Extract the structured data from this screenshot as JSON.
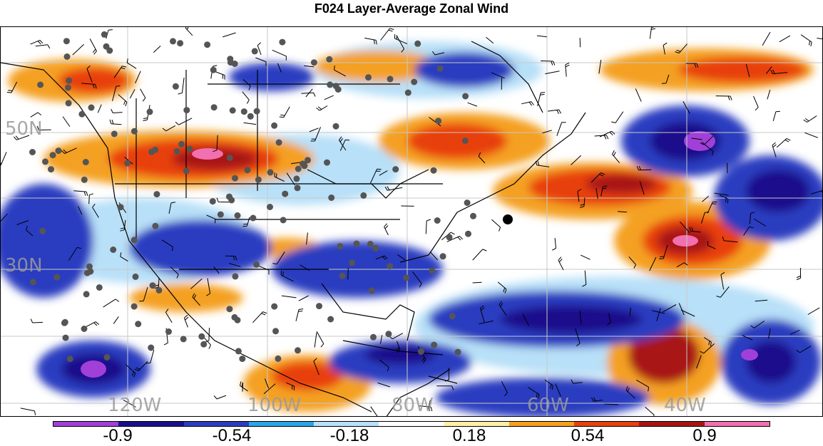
{
  "title": "F024 Layer-Average Zonal Wind",
  "map": {
    "lon_labels": [
      "120W",
      "100W",
      "80W",
      "60W",
      "40W"
    ],
    "lat_labels": [
      "50N",
      "30N"
    ]
  },
  "colorbar": {
    "colors": [
      "#a040d8",
      "#1a0f8c",
      "#2a3ec0",
      "#2aa6e8",
      "#b8e0f8",
      "#ffffff",
      "#fff0a8",
      "#f4a020",
      "#e84010",
      "#a81414",
      "#f070b0"
    ],
    "labels": [
      "-0.9",
      "-0.54",
      "-0.18",
      "0.18",
      "0.54",
      "0.9"
    ]
  }
}
